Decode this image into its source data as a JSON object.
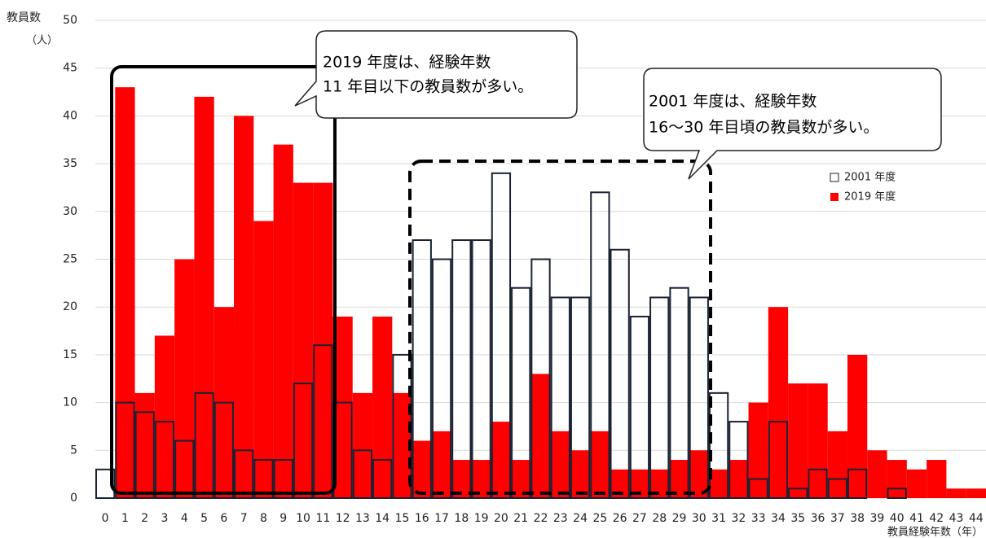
{
  "chart_data": {
    "type": "bar",
    "y_axis_label": "教員数",
    "y_axis_unit": "（人）",
    "x_axis_label": "教員経験年数（年）",
    "categories": [
      "0",
      "1",
      "2",
      "3",
      "4",
      "5",
      "6",
      "7",
      "8",
      "9",
      "10",
      "11",
      "12",
      "13",
      "14",
      "15",
      "16",
      "17",
      "18",
      "19",
      "20",
      "21",
      "22",
      "23",
      "24",
      "25",
      "26",
      "27",
      "28",
      "29",
      "30",
      "31",
      "32",
      "33",
      "34",
      "35",
      "36",
      "37",
      "38",
      "39",
      "40",
      "41",
      "42",
      "43",
      "44"
    ],
    "series": [
      {
        "name": "2019 年度",
        "color": "#ff0000",
        "style": "filled",
        "values": [
          0,
          43,
          11,
          17,
          25,
          42,
          20,
          40,
          29,
          37,
          33,
          33,
          19,
          11,
          19,
          11,
          6,
          7,
          4,
          4,
          8,
          4,
          13,
          7,
          5,
          7,
          3,
          3,
          3,
          4,
          5,
          3,
          4,
          10,
          20,
          12,
          12,
          7,
          15,
          5,
          4,
          3,
          4,
          1,
          1
        ]
      },
      {
        "name": "2001 年度",
        "color": "#1a2233",
        "style": "outline",
        "values": [
          3,
          10,
          9,
          8,
          6,
          11,
          10,
          5,
          4,
          4,
          12,
          16,
          10,
          5,
          4,
          15,
          27,
          25,
          27,
          27,
          34,
          22,
          25,
          21,
          21,
          32,
          26,
          19,
          21,
          22,
          21,
          11,
          8,
          2,
          8,
          1,
          3,
          2,
          3,
          0,
          1,
          0,
          0,
          0,
          0
        ]
      }
    ],
    "ylim": [
      0,
      50
    ],
    "yticks": [
      0,
      5,
      10,
      15,
      20,
      25,
      30,
      35,
      40,
      45,
      50
    ],
    "grid": true,
    "legend_order": [
      1,
      0
    ],
    "annotations": [
      {
        "lines": [
          "2019 年度は、経験年数",
          "11 年目以下の教員数が多い。"
        ]
      },
      {
        "lines": [
          "2001 年度は、経験年数",
          "16～30 年目頃の教員数が多い。"
        ]
      }
    ]
  }
}
